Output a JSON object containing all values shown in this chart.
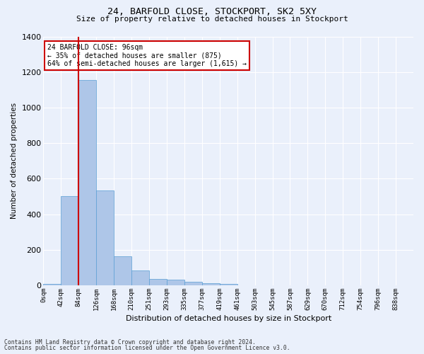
{
  "title1": "24, BARFOLD CLOSE, STOCKPORT, SK2 5XY",
  "title2": "Size of property relative to detached houses in Stockport",
  "xlabel": "Distribution of detached houses by size in Stockport",
  "ylabel": "Number of detached properties",
  "footer1": "Contains HM Land Registry data © Crown copyright and database right 2024.",
  "footer2": "Contains public sector information licensed under the Open Government Licence v3.0.",
  "bar_labels": [
    "0sqm",
    "42sqm",
    "84sqm",
    "126sqm",
    "168sqm",
    "210sqm",
    "251sqm",
    "293sqm",
    "335sqm",
    "377sqm",
    "419sqm",
    "461sqm",
    "503sqm",
    "545sqm",
    "587sqm",
    "629sqm",
    "670sqm",
    "712sqm",
    "754sqm",
    "796sqm",
    "838sqm"
  ],
  "bar_values": [
    10,
    500,
    1155,
    535,
    162,
    82,
    35,
    30,
    22,
    12,
    10,
    0,
    0,
    0,
    0,
    0,
    0,
    0,
    0,
    0,
    0
  ],
  "bar_color": "#aec6e8",
  "bar_edge_color": "#5a9fd4",
  "bg_color": "#eaf0fb",
  "grid_color": "#ffffff",
  "annotation_line1": "24 BARFOLD CLOSE: 96sqm",
  "annotation_line2": "← 35% of detached houses are smaller (875)",
  "annotation_line3": "64% of semi-detached houses are larger (1,615) →",
  "annotation_box_color": "#ffffff",
  "annotation_box_edge": "#cc0000",
  "red_line_bin": 2,
  "ylim": [
    0,
    1400
  ],
  "yticks": [
    0,
    200,
    400,
    600,
    800,
    1000,
    1200,
    1400
  ]
}
